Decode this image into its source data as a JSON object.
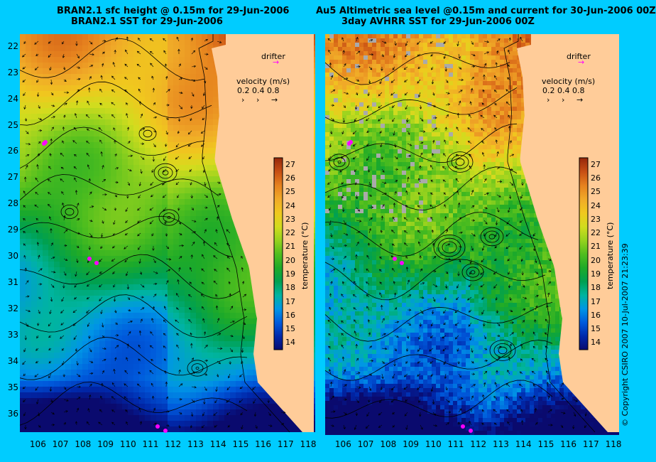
{
  "left_panel": {
    "title_line1": "BRAN2.1 sfc height @ 0.15m for 29-Jun-2006",
    "title_line2": "BRAN2.1 SST for 29-Jun-2006"
  },
  "right_panel": {
    "title_line1": "Au5 Altimetric sea level  @0.15m and current for 30-Jun-2006 00Z",
    "title_line2": "3day AVHRR SST for 29-Jun-2006 00Z"
  },
  "legend": {
    "drifter_label": "drifter",
    "velocity_label": "velocity (m/s)",
    "velocity_scale": [
      "0.2",
      "0.4",
      "0.8"
    ]
  },
  "colorbar": {
    "title": "temperature (°C)",
    "ticks": [
      "14",
      "15",
      "16",
      "17",
      "18",
      "19",
      "20",
      "21",
      "22",
      "23",
      "24",
      "25",
      "26",
      "27"
    ],
    "min": 13.5,
    "max": 27.5
  },
  "latitude_ticks": [
    "22",
    "23",
    "24",
    "25",
    "26",
    "27",
    "28",
    "29",
    "30",
    "31",
    "32",
    "33",
    "34",
    "35",
    "36"
  ],
  "longitude_ticks": [
    "106",
    "107",
    "108",
    "109",
    "110",
    "111",
    "112",
    "113",
    "114",
    "115",
    "116",
    "117",
    "118"
  ],
  "copyright": "© Copyright CSIRO 2007   10-Jul-2007 21:23:39",
  "colors": {
    "background": "#00ccff",
    "land": "#ffcc99",
    "drifter": "#ff00ff"
  }
}
